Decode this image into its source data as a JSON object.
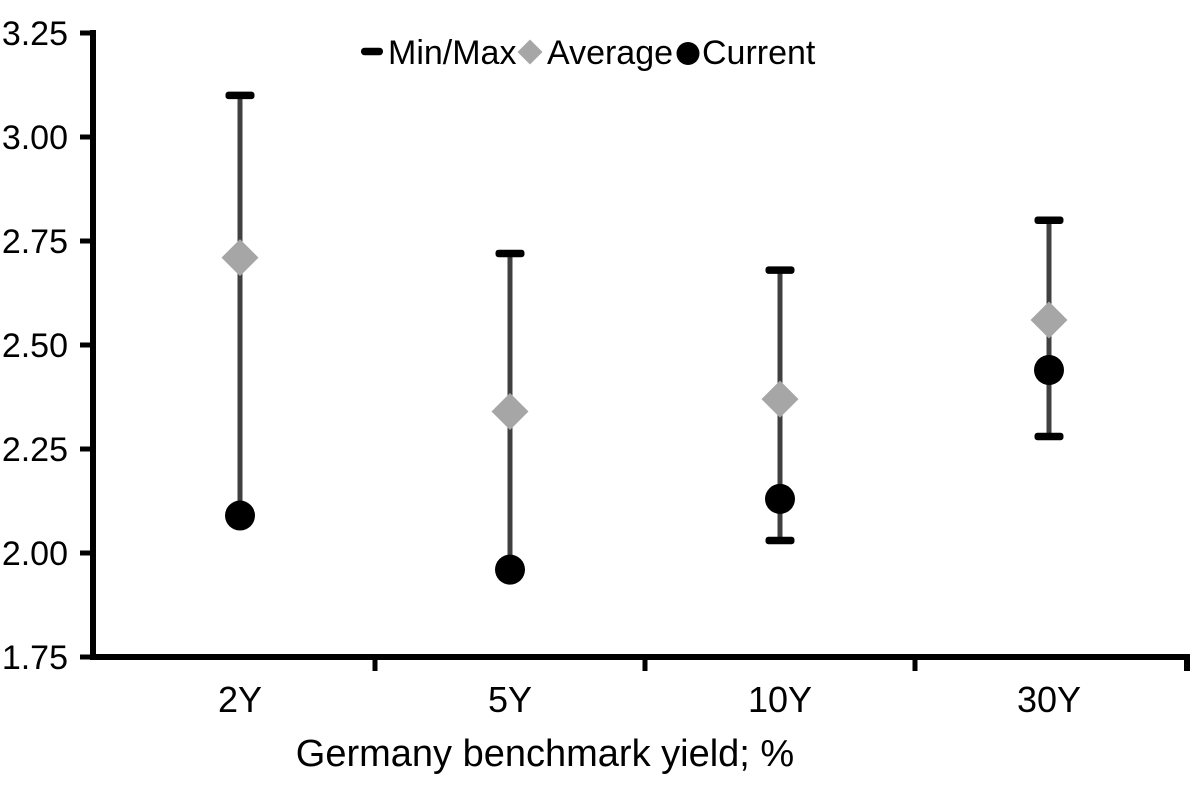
{
  "chart_data": {
    "type": "range-marker",
    "title": "",
    "xlabel": "Germany benchmark yield; %",
    "ylabel": "",
    "categories": [
      "2Y",
      "5Y",
      "10Y",
      "30Y"
    ],
    "y_axis": {
      "min": 1.75,
      "max": 3.25,
      "step": 0.25,
      "tick_labels": [
        "3.25",
        "3.00",
        "2.75",
        "2.50",
        "2.25",
        "2.00",
        "1.75"
      ]
    },
    "grid": "off",
    "legend_position": "top-center",
    "legend": [
      {
        "label": "Min/Max",
        "marker": "dash"
      },
      {
        "label": "Average",
        "marker": "diamond"
      },
      {
        "label": "Current",
        "marker": "circle"
      }
    ],
    "series": [
      {
        "name": "Min/Max",
        "type": "range",
        "min": [
          2.09,
          1.96,
          2.03,
          2.28
        ],
        "max": [
          3.1,
          2.72,
          2.68,
          2.8
        ]
      },
      {
        "name": "Average",
        "type": "diamond",
        "values": [
          2.71,
          2.34,
          2.37,
          2.56
        ]
      },
      {
        "name": "Current",
        "type": "circle",
        "values": [
          2.09,
          1.96,
          2.13,
          2.44
        ]
      }
    ],
    "colors": {
      "axis": "#000000",
      "cap": "#000000",
      "range_line": "#404040",
      "average": "#a6a6a6",
      "current": "#000000",
      "text": "#000000"
    }
  }
}
